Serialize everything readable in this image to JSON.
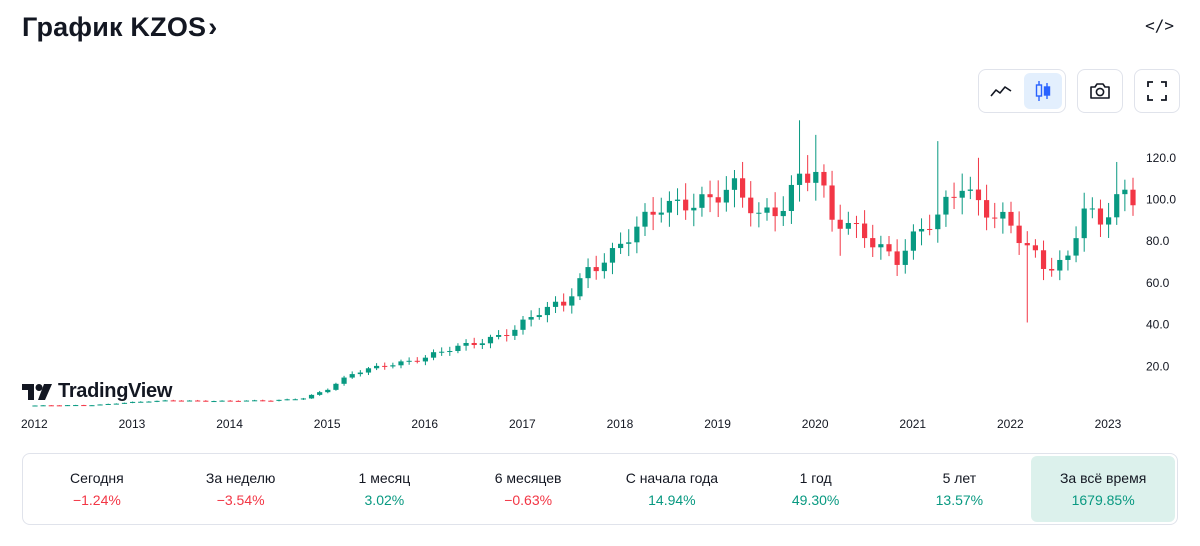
{
  "header": {
    "title": "График KZOS",
    "chevron": "›",
    "embed_label": "</>"
  },
  "controls": {
    "line_icon": "line-chart-icon",
    "candle_icon": "candlestick-icon",
    "camera_icon": "camera-icon",
    "fullscreen_icon": "fullscreen-icon",
    "active_type": "candles"
  },
  "logo": {
    "text": "TradingView"
  },
  "colors": {
    "up": "#089981",
    "down": "#f23645",
    "accent": "#2962ff"
  },
  "chart_data": {
    "type": "candlestick",
    "title": "",
    "y_axis": {
      "side": "right",
      "ticks": [
        "120.0",
        "100.0",
        "80.0",
        "60.0",
        "40.0",
        "20.0"
      ],
      "range": [
        0,
        138
      ]
    },
    "x_axis": {
      "ticks": [
        "2012",
        "2013",
        "2014",
        "2015",
        "2016",
        "2017",
        "2018",
        "2019",
        "2020",
        "2021",
        "2022",
        "2023"
      ],
      "range": [
        "2012-01",
        "2023-04"
      ]
    },
    "interval": "1M",
    "anchors": [
      [
        "2012-01",
        1.2
      ],
      [
        "2012-08",
        1.4
      ],
      [
        "2013-01",
        2.8
      ],
      [
        "2013-06",
        3.6
      ],
      [
        "2014-01",
        3.4
      ],
      [
        "2014-06",
        3.5
      ],
      [
        "2014-10",
        4.8
      ],
      [
        "2015-01",
        9
      ],
      [
        "2015-04",
        16
      ],
      [
        "2015-08",
        21
      ],
      [
        "2016-01",
        24
      ],
      [
        "2016-06",
        30
      ],
      [
        "2016-12",
        38
      ],
      [
        "2017-03",
        45
      ],
      [
        "2017-06",
        50
      ],
      [
        "2017-09",
        68
      ],
      [
        "2017-12",
        74
      ],
      [
        "2018-03",
        84
      ],
      [
        "2018-06",
        97
      ],
      [
        "2018-09",
        101
      ],
      [
        "2018-12",
        100
      ],
      [
        "2019-03",
        103
      ],
      [
        "2019-06",
        92
      ],
      [
        "2019-09",
        100
      ],
      [
        "2019-11",
        112
      ],
      [
        "2020-01",
        112
      ],
      [
        "2020-03",
        88
      ],
      [
        "2020-07",
        85
      ],
      [
        "2020-11",
        72
      ],
      [
        "2021-01",
        80
      ],
      [
        "2021-04",
        90
      ],
      [
        "2021-07",
        110
      ],
      [
        "2021-09",
        100
      ],
      [
        "2021-12",
        90
      ],
      [
        "2022-02",
        80
      ],
      [
        "2022-05",
        67
      ],
      [
        "2022-08",
        73
      ],
      [
        "2022-10",
        100
      ],
      [
        "2022-12",
        86
      ],
      [
        "2023-02",
        100
      ],
      [
        "2023-04",
        96
      ]
    ],
    "spikes": [
      {
        "date": "2019-11",
        "high": 138
      },
      {
        "date": "2020-01",
        "high": 131
      },
      {
        "date": "2021-04",
        "high": 128
      },
      {
        "date": "2021-09",
        "high": 120
      },
      {
        "date": "2022-03",
        "low": 41
      },
      {
        "date": "2023-02",
        "high": 118
      },
      {
        "date": "2020-04",
        "low": 73
      }
    ]
  },
  "performance": [
    {
      "label": "Сегодня",
      "value": "−1.24%",
      "trend": "neg"
    },
    {
      "label": "За неделю",
      "value": "−3.54%",
      "trend": "neg"
    },
    {
      "label": "1 месяц",
      "value": "3.02%",
      "trend": "pos"
    },
    {
      "label": "6 месяцев",
      "value": "−0.63%",
      "trend": "neg"
    },
    {
      "label": "С начала года",
      "value": "14.94%",
      "trend": "pos"
    },
    {
      "label": "1 год",
      "value": "49.30%",
      "trend": "pos"
    },
    {
      "label": "5 лет",
      "value": "13.57%",
      "trend": "pos"
    },
    {
      "label": "За всё время",
      "value": "1679.85%",
      "trend": "pos",
      "active": true
    }
  ]
}
